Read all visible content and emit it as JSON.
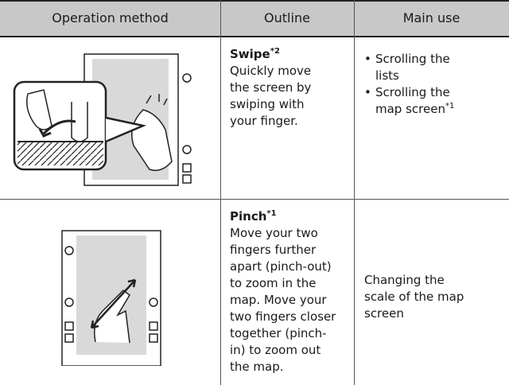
{
  "header": {
    "columns": [
      "Operation method",
      "Outline",
      "Main use"
    ]
  },
  "rows": [
    {
      "outline": {
        "title": "Swipe",
        "title_note": "*2",
        "lines": [
          "Quickly move",
          "the screen by",
          "swiping with",
          "your finger."
        ]
      },
      "main_use": {
        "bullets": [
          {
            "lines": [
              "Scrolling the",
              "lists"
            ]
          },
          {
            "lines": [
              "Scrolling the",
              "map screen"
            ],
            "note": "*1"
          }
        ]
      }
    },
    {
      "outline": {
        "title": "Pinch",
        "title_note": "*1",
        "lines": [
          "Move your two",
          "fingers further",
          "apart (pinch-out)",
          "to zoom in the",
          "map. Move your",
          "two fingers closer",
          "together (pinch-",
          "in) to zoom out",
          "the map."
        ]
      },
      "main_use": {
        "lines": [
          "Changing the",
          "scale of the map",
          "screen"
        ]
      }
    }
  ]
}
